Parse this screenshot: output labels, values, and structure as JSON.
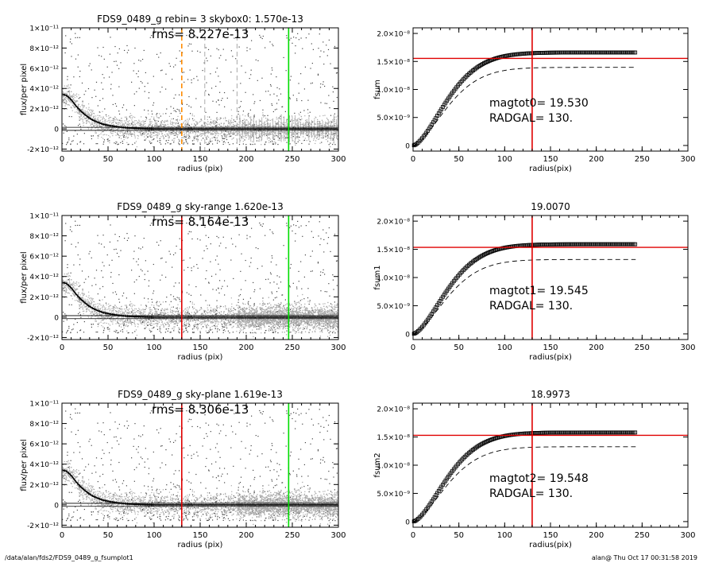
{
  "footer": {
    "path": "/data/alan/fds2/FDS9_0489_g_fsumplot1",
    "stamp": "alan@  Thu Oct 17 00:31:58 2019"
  },
  "colors": {
    "axis": "#000000",
    "points": "#444444",
    "sky_points": "#a8a8a8",
    "profile": "#000000",
    "red": "#e00000",
    "green": "#00dd00",
    "orange": "#ff8c00",
    "gray_dash": "#aaaaaa"
  },
  "chart_data": [
    {
      "id": "profile-rebin",
      "type": "scatter",
      "title": "FDS9_0489_g rebin= 3    skybox0:  1.570e-13",
      "annotation": "rms= 8.227e-13",
      "xlabel": "radius (pix)",
      "ylabel": "flux/per pixel",
      "xlim": [
        0,
        300
      ],
      "ylim": [
        -2.2e-12,
        1e-11
      ],
      "xticks": [
        0,
        50,
        100,
        150,
        200,
        250,
        300
      ],
      "yticks": [
        -2e-12,
        0,
        2e-12,
        4e-12,
        6e-12,
        8e-12,
        1e-11
      ],
      "yticklabels": [
        "-2×10⁻¹²",
        "0",
        "2×10⁻¹²",
        "4×10⁻¹²",
        "6×10⁻¹²",
        "8×10⁻¹²",
        "1×10⁻¹¹"
      ],
      "hlines": [
        1.5e-13,
        -1.5e-13
      ],
      "vlines": [
        {
          "x": 130,
          "color": "orange",
          "dash": true
        },
        {
          "x": 155,
          "color": "gray_dash",
          "dash": true
        },
        {
          "x": 190,
          "color": "gray_dash",
          "dash": true
        },
        {
          "x": 246,
          "color": "green",
          "dash": false
        }
      ],
      "sky_region": null,
      "sky_style": "bars",
      "profile": [
        [
          2,
          3.4e-12
        ],
        [
          5,
          3.3e-12
        ],
        [
          10,
          2.9e-12
        ],
        [
          15,
          2.3e-12
        ],
        [
          20,
          1.8e-12
        ],
        [
          25,
          1.4e-12
        ],
        [
          30,
          1.05e-12
        ],
        [
          35,
          8e-13
        ],
        [
          40,
          6e-13
        ],
        [
          45,
          4.5e-13
        ],
        [
          50,
          3.5e-13
        ],
        [
          60,
          2e-13
        ],
        [
          70,
          1e-13
        ],
        [
          80,
          5e-14
        ],
        [
          90,
          2e-14
        ],
        [
          100,
          0.0
        ],
        [
          150,
          0.0
        ],
        [
          200,
          0.0
        ],
        [
          250,
          0.0
        ],
        [
          300,
          0.0
        ]
      ]
    },
    {
      "id": "curve-0",
      "type": "line",
      "title": "",
      "annotation": "magtot0=  19.530",
      "annotation2": "RADGAL=    130.",
      "xlabel": "radius(pix)",
      "ylabel": "fsum",
      "xlim": [
        0,
        300
      ],
      "ylim": [
        -1e-09,
        2.1e-08
      ],
      "xticks": [
        0,
        50,
        100,
        150,
        200,
        250,
        300
      ],
      "yticks": [
        0,
        5e-09,
        1e-08,
        1.5e-08,
        2e-08
      ],
      "yticklabels": [
        "0",
        "5.0×10⁻⁹",
        "1.0×10⁻⁸",
        "1.5×10⁻⁸",
        "2.0×10⁻⁸"
      ],
      "hline": 1.555e-08,
      "vline": 130,
      "final": 1.66e-08,
      "dashed_scale": 0.84
    },
    {
      "id": "profile-range",
      "type": "scatter",
      "title": "FDS9_0489_g sky-range  1.620e-13",
      "annotation": "rms= 8.164e-13",
      "xlabel": "radius (pix)",
      "ylabel": "flux/per pixel",
      "xlim": [
        0,
        300
      ],
      "ylim": [
        -2.2e-12,
        1e-11
      ],
      "xticks": [
        0,
        50,
        100,
        150,
        200,
        250,
        300
      ],
      "yticks": [
        -2e-12,
        0,
        2e-12,
        4e-12,
        6e-12,
        8e-12,
        1e-11
      ],
      "yticklabels": [
        "-2×10⁻¹²",
        "0",
        "2×10⁻¹²",
        "4×10⁻¹²",
        "6×10⁻¹²",
        "8×10⁻¹²",
        "1×10⁻¹¹"
      ],
      "hlines": [
        1.5e-13,
        -1.5e-13
      ],
      "vlines": [
        {
          "x": 130,
          "color": "red",
          "dash": false
        },
        {
          "x": 246,
          "color": "green",
          "dash": false
        }
      ],
      "sky_region": [
        190,
        300
      ],
      "sky_style": "band",
      "profile": [
        [
          2,
          3.4e-12
        ],
        [
          5,
          3.3e-12
        ],
        [
          10,
          2.9e-12
        ],
        [
          15,
          2.3e-12
        ],
        [
          20,
          1.8e-12
        ],
        [
          25,
          1.4e-12
        ],
        [
          30,
          1.05e-12
        ],
        [
          35,
          8e-13
        ],
        [
          40,
          6e-13
        ],
        [
          45,
          4.5e-13
        ],
        [
          50,
          3.5e-13
        ],
        [
          60,
          2e-13
        ],
        [
          70,
          1e-13
        ],
        [
          80,
          5e-14
        ],
        [
          90,
          2e-14
        ],
        [
          100,
          0.0
        ],
        [
          150,
          0.0
        ],
        [
          200,
          0.0
        ],
        [
          250,
          0.0
        ],
        [
          300,
          0.0
        ]
      ]
    },
    {
      "id": "curve-1",
      "type": "line",
      "title": "19.0070",
      "annotation": "magtot1=  19.545",
      "annotation2": "RADGAL=    130.",
      "xlabel": "radius(pix)",
      "ylabel": "fsum1",
      "xlim": [
        0,
        300
      ],
      "ylim": [
        -1e-09,
        2.1e-08
      ],
      "xticks": [
        0,
        50,
        100,
        150,
        200,
        250,
        300
      ],
      "yticks": [
        0,
        5e-09,
        1e-08,
        1.5e-08,
        2e-08
      ],
      "yticklabels": [
        "0",
        "5.0×10⁻⁹",
        "1.0×10⁻⁸",
        "1.5×10⁻⁸",
        "2.0×10⁻⁸"
      ],
      "hline": 1.535e-08,
      "vline": 130,
      "final": 1.59e-08,
      "dashed_scale": 0.83
    },
    {
      "id": "profile-plane",
      "type": "scatter",
      "title": "FDS9_0489_g sky-plane  1.619e-13",
      "annotation": "rms= 8.306e-13",
      "xlabel": "radius (pix)",
      "ylabel": "flux/per pixel",
      "xlim": [
        0,
        300
      ],
      "ylim": [
        -2.2e-12,
        1e-11
      ],
      "xticks": [
        0,
        50,
        100,
        150,
        200,
        250,
        300
      ],
      "yticks": [
        -2e-12,
        0,
        2e-12,
        4e-12,
        6e-12,
        8e-12,
        1e-11
      ],
      "yticklabels": [
        "-2×10⁻¹²",
        "0",
        "2×10⁻¹²",
        "4×10⁻¹²",
        "6×10⁻¹²",
        "8×10⁻¹²",
        "1×10⁻¹¹"
      ],
      "hlines": [
        1.5e-13,
        -1.5e-13
      ],
      "vlines": [
        {
          "x": 130,
          "color": "red",
          "dash": false
        },
        {
          "x": 246,
          "color": "green",
          "dash": false
        }
      ],
      "sky_region": [
        190,
        300
      ],
      "sky_style": "band",
      "profile": [
        [
          2,
          3.4e-12
        ],
        [
          5,
          3.3e-12
        ],
        [
          10,
          2.9e-12
        ],
        [
          15,
          2.3e-12
        ],
        [
          20,
          1.8e-12
        ],
        [
          25,
          1.4e-12
        ],
        [
          30,
          1.05e-12
        ],
        [
          35,
          8e-13
        ],
        [
          40,
          6e-13
        ],
        [
          45,
          4.5e-13
        ],
        [
          50,
          3.5e-13
        ],
        [
          60,
          2e-13
        ],
        [
          70,
          1e-13
        ],
        [
          80,
          5e-14
        ],
        [
          90,
          2e-14
        ],
        [
          100,
          0.0
        ],
        [
          150,
          0.0
        ],
        [
          200,
          0.0
        ],
        [
          250,
          0.0
        ],
        [
          300,
          0.0
        ]
      ]
    },
    {
      "id": "curve-2",
      "type": "line",
      "title": "18.9973",
      "annotation": "magtot2=  19.548",
      "annotation2": "RADGAL=    130.",
      "xlabel": "radius(pix)",
      "ylabel": "fsum2",
      "xlim": [
        0,
        300
      ],
      "ylim": [
        -1e-09,
        2.1e-08
      ],
      "xticks": [
        0,
        50,
        100,
        150,
        200,
        250,
        300
      ],
      "yticks": [
        0,
        5e-09,
        1e-08,
        1.5e-08,
        2e-08
      ],
      "yticklabels": [
        "0",
        "5.0×10⁻⁹",
        "1.0×10⁻⁸",
        "1.5×10⁻⁸",
        "2.0×10⁻⁸"
      ],
      "hline": 1.53e-08,
      "vline": 130,
      "final": 1.58e-08,
      "dashed_scale": 0.84
    }
  ]
}
